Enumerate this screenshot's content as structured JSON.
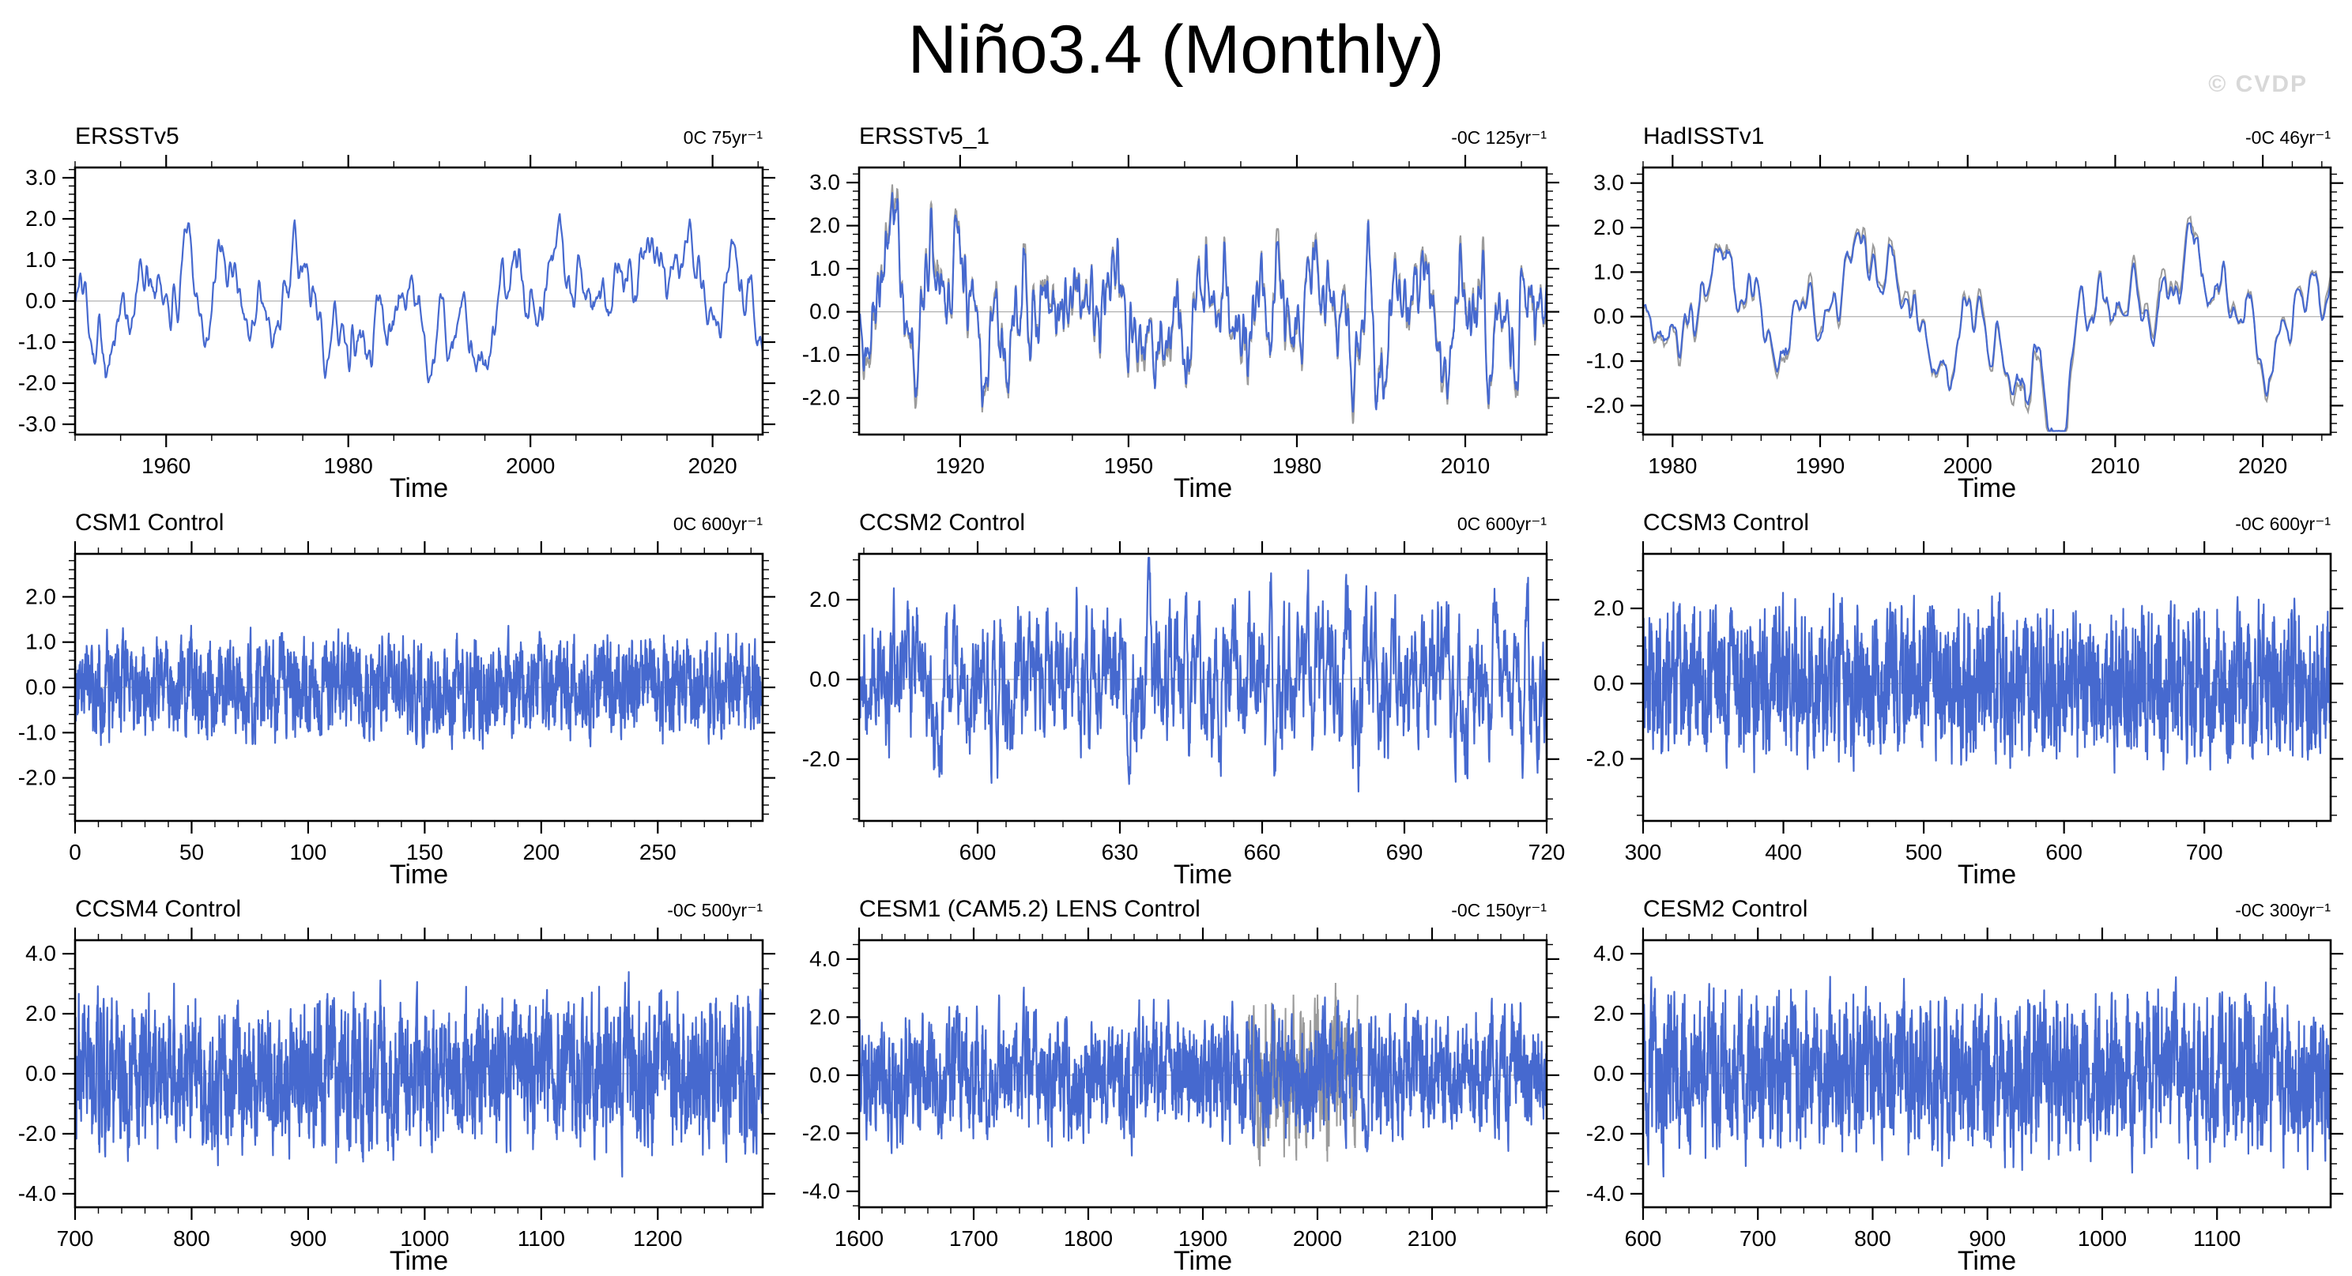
{
  "page": {
    "title": "Niño3.4 (Monthly)",
    "watermark": "© CVDP"
  },
  "colors": {
    "line_blue": "#4669cf",
    "line_gray": "#9b9b9b",
    "zero_line": "#b0b0b0",
    "frame": "#000000",
    "watermark": "#d8d8d8"
  },
  "chart_data": [
    {
      "type": "line",
      "title": "ERSSTv5",
      "trend_label": "0C 75yr⁻¹",
      "xlabel": "Time",
      "xlim": [
        1950,
        2025.5
      ],
      "xticks": [
        1960,
        1980,
        2000,
        2020
      ],
      "xtick_labels": [
        "1960",
        "1980",
        "2000",
        "2020"
      ],
      "xminor": 5,
      "ylim": [
        -3.25,
        3.25
      ],
      "yticks": [
        3,
        2,
        1,
        0,
        -1,
        -2,
        -3
      ],
      "ytick_labels": [
        "3.0",
        "2.0",
        "1.0",
        "0.0",
        "-1.0",
        "-2.0",
        "-3.0"
      ],
      "yminor": 0.2,
      "series": [
        {
          "name": "nino34-index",
          "color": "blue"
        }
      ],
      "gray_overlay": "none",
      "synth": {
        "seed": 101,
        "n": 906,
        "phi": 0.94,
        "std": 0.85,
        "smooth": 3
      }
    },
    {
      "type": "line",
      "title": "ERSSTv5_1",
      "trend_label": "-0C 125yr⁻¹",
      "xlabel": "Time",
      "xlim": [
        1902,
        2024.5
      ],
      "xticks": [
        1920,
        1950,
        1980,
        2010
      ],
      "xtick_labels": [
        "1920",
        "1950",
        "1980",
        "2010"
      ],
      "xminor": 10,
      "ylim": [
        -2.85,
        3.35
      ],
      "yticks": [
        3,
        2,
        1,
        0,
        -1,
        -2
      ],
      "ytick_labels": [
        "3.0",
        "2.0",
        "1.0",
        "0.0",
        "-1.0",
        "-2.0"
      ],
      "yminor": 0.2,
      "series": [
        {
          "name": "nino34-index",
          "color": "blue"
        },
        {
          "name": "raw-overlay",
          "color": "gray"
        }
      ],
      "gray_overlay": "full",
      "synth": {
        "seed": 202,
        "n": 1470,
        "phi": 0.93,
        "std": 0.88,
        "smooth": 3
      }
    },
    {
      "type": "line",
      "title": "HadISSTv1",
      "trend_label": "-0C 46yr⁻¹",
      "xlabel": "Time",
      "xlim": [
        1978,
        2024.6
      ],
      "xticks": [
        1980,
        1990,
        2000,
        2010,
        2020
      ],
      "xtick_labels": [
        "1980",
        "1990",
        "2000",
        "2010",
        "2020"
      ],
      "xminor": 2,
      "ylim": [
        -2.65,
        3.35
      ],
      "yticks": [
        3,
        2,
        1,
        0,
        -1,
        -2
      ],
      "ytick_labels": [
        "3.0",
        "2.0",
        "1.0",
        "0.0",
        "-1.0",
        "-2.0"
      ],
      "yminor": 0.2,
      "series": [
        {
          "name": "nino34-index",
          "color": "blue"
        },
        {
          "name": "raw-overlay",
          "color": "gray"
        }
      ],
      "gray_overlay": "full",
      "synth": {
        "seed": 303,
        "n": 560,
        "phi": 0.94,
        "std": 0.95,
        "smooth": 3
      }
    },
    {
      "type": "line",
      "title": "CSM1 Control",
      "trend_label": "0C 600yr⁻¹",
      "xlabel": "Time",
      "xlim": [
        0,
        295
      ],
      "xticks": [
        0,
        50,
        100,
        150,
        200,
        250
      ],
      "xtick_labels": [
        "0",
        "50",
        "100",
        "150",
        "200",
        "250"
      ],
      "xminor": 10,
      "ylim": [
        -2.95,
        2.95
      ],
      "yticks": [
        2,
        1,
        0,
        -1,
        -2
      ],
      "ytick_labels": [
        "2.0",
        "1.0",
        "0.0",
        "-1.0",
        "-2.0"
      ],
      "yminor": 0.2,
      "series": [
        {
          "name": "nino34-index",
          "color": "blue"
        }
      ],
      "gray_overlay": "none",
      "synth": {
        "seed": 404,
        "n": 2500,
        "phi": 0.55,
        "std": 0.55,
        "smooth": 0
      }
    },
    {
      "type": "line",
      "title": "CCSM2 Control",
      "trend_label": "0C 600yr⁻¹",
      "xlabel": "Time",
      "xlim": [
        575,
        720
      ],
      "xticks": [
        600,
        630,
        660,
        690,
        720
      ],
      "xtick_labels": [
        "600",
        "630",
        "660",
        "690",
        "720"
      ],
      "xminor": 6,
      "ylim": [
        -3.55,
        3.15
      ],
      "yticks": [
        2,
        0,
        -2
      ],
      "ytick_labels": [
        "2.0",
        "0.0",
        "-2.0"
      ],
      "yminor": 0.5,
      "series": [
        {
          "name": "nino34-index",
          "color": "blue"
        }
      ],
      "gray_overlay": "none",
      "synth": {
        "seed": 505,
        "n": 1740,
        "phi": 0.78,
        "std": 1.0,
        "smooth": 0
      }
    },
    {
      "type": "line",
      "title": "CCSM3 Control",
      "trend_label": "-0C 600yr⁻¹",
      "xlabel": "Time",
      "xlim": [
        300,
        790
      ],
      "xticks": [
        300,
        400,
        500,
        600,
        700
      ],
      "xtick_labels": [
        "300",
        "400",
        "500",
        "600",
        "700"
      ],
      "xminor": 20,
      "ylim": [
        -3.65,
        3.45
      ],
      "yticks": [
        2,
        0,
        -2
      ],
      "ytick_labels": [
        "2.0",
        "0.0",
        "-2.0"
      ],
      "yminor": 0.5,
      "series": [
        {
          "name": "nino34-index",
          "color": "blue"
        }
      ],
      "gray_overlay": "none",
      "synth": {
        "seed": 606,
        "n": 2600,
        "phi": 0.5,
        "std": 1.0,
        "smooth": 0
      }
    },
    {
      "type": "line",
      "title": "CCSM4 Control",
      "trend_label": "-0C 500yr⁻¹",
      "xlabel": "Time",
      "xlim": [
        700,
        1290
      ],
      "xticks": [
        700,
        800,
        900,
        1000,
        1100,
        1200
      ],
      "xtick_labels": [
        "700",
        "800",
        "900",
        "1000",
        "1100",
        "1200"
      ],
      "xminor": 20,
      "ylim": [
        -4.45,
        4.45
      ],
      "yticks": [
        4,
        2,
        0,
        -2,
        -4
      ],
      "ytick_labels": [
        "4.0",
        "2.0",
        "0.0",
        "-2.0",
        "-4.0"
      ],
      "yminor": 0.5,
      "series": [
        {
          "name": "nino34-index",
          "color": "blue"
        }
      ],
      "gray_overlay": "none",
      "synth": {
        "seed": 707,
        "n": 2600,
        "phi": 0.55,
        "std": 1.25,
        "smooth": 0
      }
    },
    {
      "type": "line",
      "title": "CESM1 (CAM5.2) LENS Control",
      "trend_label": "-0C 150yr⁻¹",
      "xlabel": "Time",
      "xlim": [
        1600,
        2200
      ],
      "xticks": [
        1600,
        1700,
        1800,
        1900,
        2000,
        2100
      ],
      "xtick_labels": [
        "1600",
        "1700",
        "1800",
        "1900",
        "2000",
        "2100"
      ],
      "xminor": 20,
      "ylim": [
        -4.55,
        4.65
      ],
      "yticks": [
        4,
        2,
        0,
        -2,
        -4
      ],
      "ytick_labels": [
        "4.0",
        "2.0",
        "0.0",
        "-2.0",
        "-4.0"
      ],
      "yminor": 0.5,
      "series": [
        {
          "name": "nino34-index",
          "color": "blue"
        },
        {
          "name": "lens-overlap-overlay",
          "color": "gray"
        }
      ],
      "gray_overlay": [
        1940,
        2035
      ],
      "synth": {
        "seed": 808,
        "n": 2600,
        "phi": 0.6,
        "std": 1.05,
        "smooth": 0
      }
    },
    {
      "type": "line",
      "title": "CESM2 Control",
      "trend_label": "-0C 300yr⁻¹",
      "xlabel": "Time",
      "xlim": [
        600,
        1199
      ],
      "xticks": [
        600,
        700,
        800,
        900,
        1000,
        1100
      ],
      "xtick_labels": [
        "600",
        "700",
        "800",
        "900",
        "1000",
        "1100"
      ],
      "xminor": 20,
      "ylim": [
        -4.45,
        4.45
      ],
      "yticks": [
        4,
        2,
        0,
        -2,
        -4
      ],
      "ytick_labels": [
        "4.0",
        "2.0",
        "0.0",
        "-2.0",
        "-4.0"
      ],
      "yminor": 0.5,
      "series": [
        {
          "name": "nino34-index",
          "color": "blue"
        }
      ],
      "gray_overlay": "none",
      "synth": {
        "seed": 909,
        "n": 2600,
        "phi": 0.55,
        "std": 1.3,
        "smooth": 0
      }
    }
  ]
}
